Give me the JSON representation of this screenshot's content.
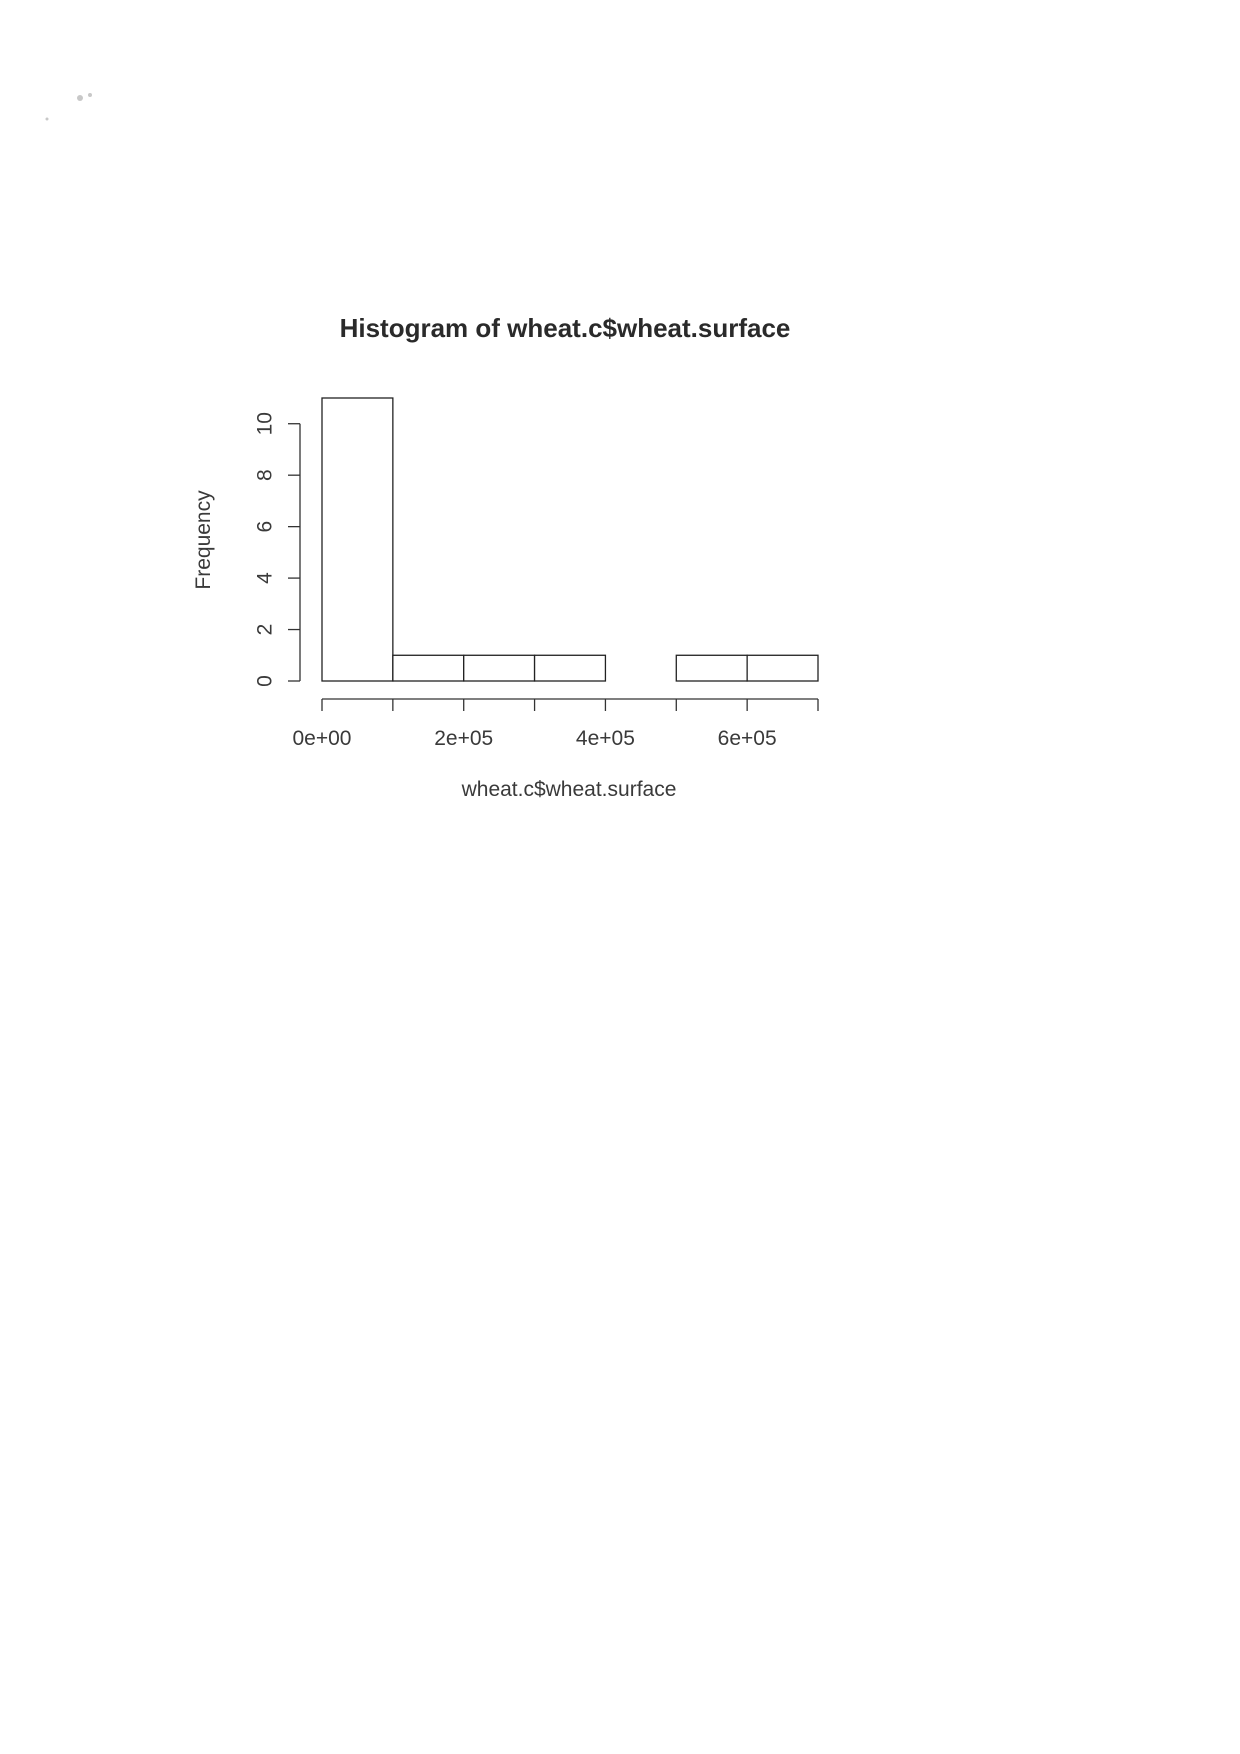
{
  "chart_data": {
    "type": "bar",
    "title": "Histogram of wheat.c$wheat.surface",
    "xlabel": "wheat.c$wheat.surface",
    "ylabel": "Frequency",
    "bin_edges": [
      0,
      100000,
      200000,
      300000,
      400000,
      500000,
      600000,
      700000
    ],
    "values": [
      11,
      1,
      1,
      1,
      0,
      1,
      1
    ],
    "xlim": [
      0,
      700000
    ],
    "ylim": [
      0,
      11
    ],
    "x_ticks": [
      0,
      100000,
      200000,
      300000,
      400000,
      500000,
      600000,
      700000
    ],
    "x_tick_labels": [
      "0e+00",
      "",
      "2e+05",
      "",
      "4e+05",
      "",
      "6e+05",
      ""
    ],
    "y_ticks": [
      0,
      2,
      4,
      6,
      8,
      10
    ],
    "y_tick_labels": [
      "0",
      "2",
      "4",
      "6",
      "8",
      "10"
    ],
    "grid": false,
    "legend": "none",
    "colors": {
      "bar_fill": "#ffffff",
      "bar_stroke": "#222222",
      "text": "#3a3a3a"
    }
  }
}
